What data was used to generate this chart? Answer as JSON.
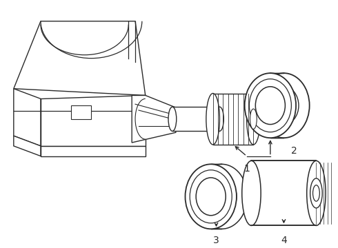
{
  "background": "#ffffff",
  "line_color": "#2a2a2a",
  "line_width": 1.0,
  "figsize": [
    4.9,
    3.6
  ],
  "dpi": 100
}
